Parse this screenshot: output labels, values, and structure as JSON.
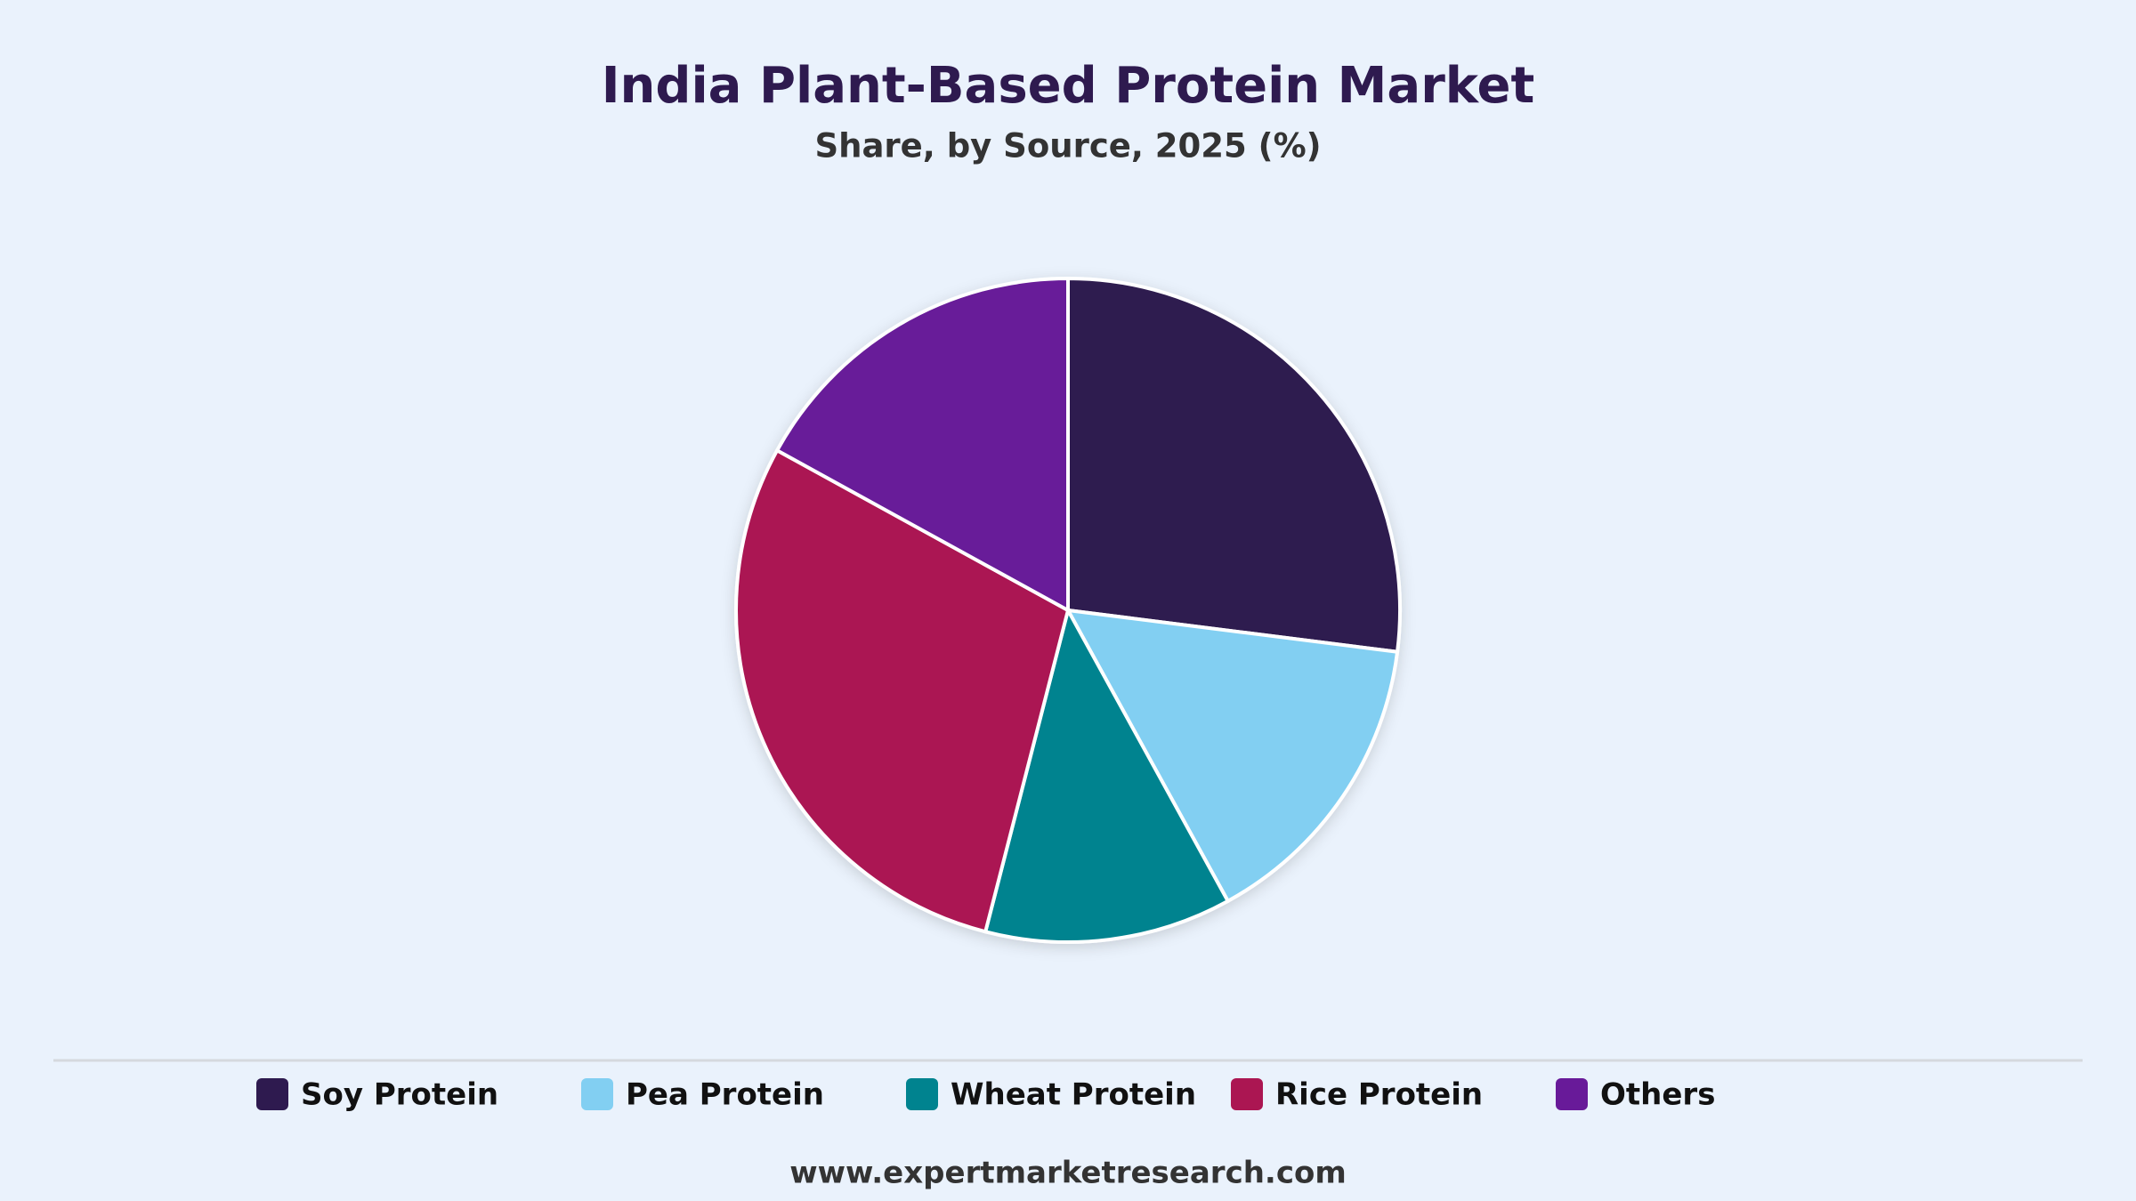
{
  "chart_data": {
    "type": "pie",
    "title": "India Plant-Based Protein Market",
    "subtitle": "Share, by Source, 2025 (%)",
    "categories": [
      "Soy Protein",
      "Pea Protein",
      "Wheat Protein",
      "Rice Protein",
      "Others"
    ],
    "values": [
      27,
      15,
      12,
      29,
      17
    ],
    "colors": [
      "#2e1a4f",
      "#82cff2",
      "#00838f",
      "#ab1652",
      "#681a99"
    ],
    "legend": "bottom",
    "source": "www.expertmarketresearch.com"
  }
}
